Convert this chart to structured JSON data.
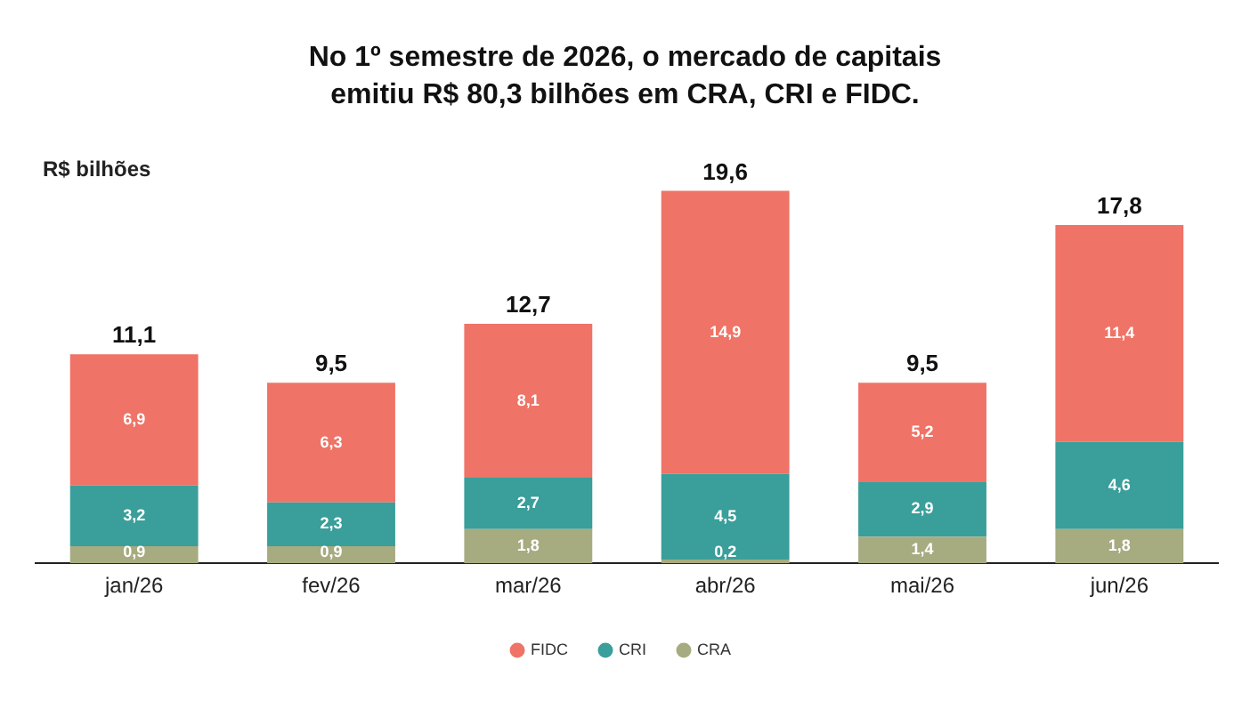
{
  "chart_data": {
    "type": "bar",
    "title": "No 1º semestre de 2026, o mercado de capitais emitiu R$ 80,3 bilhões em CRA, CRI e FIDC.",
    "ylabel": "R$ bilhões",
    "categories": [
      "jan/26",
      "fev/26",
      "mar/26",
      "abr/26",
      "mai/26",
      "jun/26"
    ],
    "stacked": true,
    "series": [
      {
        "name": "CRA",
        "color": "#a7ab80",
        "values": [
          0.9,
          0.9,
          1.8,
          0.2,
          1.4,
          1.8
        ],
        "value_labels": [
          "0,9",
          "0,9",
          "1,8",
          "0,2",
          "1,4",
          "1,8"
        ]
      },
      {
        "name": "CRI",
        "color": "#3a9e9a",
        "values": [
          3.2,
          2.3,
          2.7,
          4.5,
          2.9,
          4.6
        ],
        "value_labels": [
          "3,2",
          "2,3",
          "2,7",
          "4,5",
          "2,9",
          "4,6"
        ]
      },
      {
        "name": "FIDC",
        "color": "#ef7366",
        "values": [
          6.9,
          6.3,
          8.1,
          14.9,
          5.2,
          11.4
        ],
        "value_labels": [
          "6,9",
          "6,3",
          "8,1",
          "14,9",
          "5,2",
          "11,4"
        ]
      }
    ],
    "totals": [
      "11,1",
      "9,5",
      "12,7",
      "19,6",
      "9,5",
      "17,8"
    ],
    "legend": "bottom"
  }
}
